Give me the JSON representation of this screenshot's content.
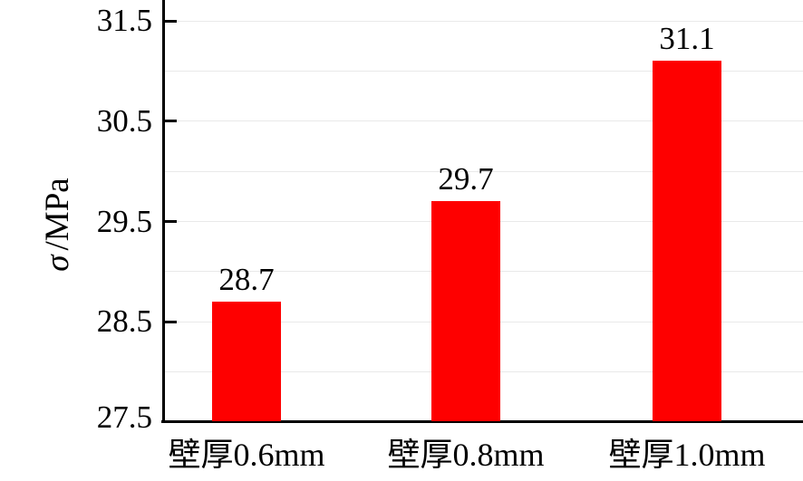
{
  "chart_data": {
    "type": "bar",
    "title": "",
    "categories": [
      "壁厚0.6mm",
      "壁厚0.8mm",
      "壁厚1.0mm"
    ],
    "values": [
      28.7,
      29.7,
      31.1
    ],
    "value_labels": [
      "28.7",
      "29.7",
      "31.1"
    ],
    "ylabel": "σ/MPa",
    "ylabel_symbol": "σ",
    "ylabel_unit": "/MPa",
    "xlabel": "",
    "ylim": [
      27.5,
      31.5
    ],
    "yticks": [
      27.5,
      28.5,
      29.5,
      30.5,
      31.5
    ],
    "ytick_labels": [
      "27.5",
      "28.5",
      "29.5",
      "30.5",
      "31.5"
    ],
    "grid": "horizontal",
    "grid_interval": 0.5,
    "legend": "none",
    "colors": {
      "bar": "#fe0000",
      "axis": "#000000",
      "grid": "#e9e9e9",
      "text": "#000000",
      "background": "#ffffff"
    }
  }
}
